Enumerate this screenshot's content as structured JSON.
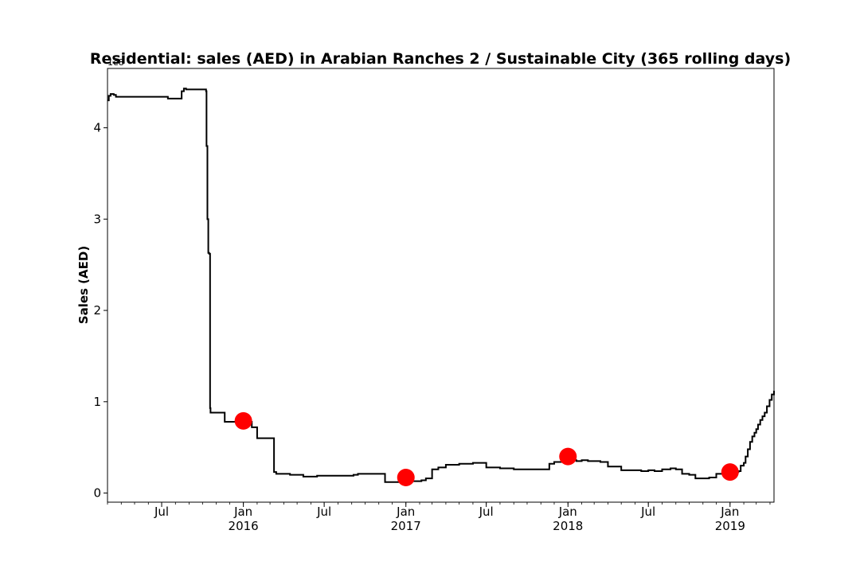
{
  "chart_data": {
    "type": "line",
    "title": "Residential: sales (AED) in Arabian Ranches 2 / Sustainable City (365 rolling days)",
    "xlabel": "",
    "ylabel": "Sales (AED)",
    "y_offset_text": "1e8",
    "y_scale": 100000000,
    "xlim": [
      "2015-03-01",
      "2019-04-10"
    ],
    "ylim": [
      -10000000,
      465000000
    ],
    "y_ticks": [
      {
        "value": 0,
        "label": "0"
      },
      {
        "value": 100000000,
        "label": "1"
      },
      {
        "value": 200000000,
        "label": "2"
      },
      {
        "value": 300000000,
        "label": "3"
      },
      {
        "value": 400000000,
        "label": "4"
      }
    ],
    "x_ticks": [
      {
        "date": "2015-07-01",
        "label": "Jul",
        "sub": ""
      },
      {
        "date": "2016-01-01",
        "label": "Jan",
        "sub": "2016"
      },
      {
        "date": "2016-07-01",
        "label": "Jul",
        "sub": ""
      },
      {
        "date": "2017-01-01",
        "label": "Jan",
        "sub": "2017"
      },
      {
        "date": "2017-07-01",
        "label": "Jul",
        "sub": ""
      },
      {
        "date": "2018-01-01",
        "label": "Jan",
        "sub": "2018"
      },
      {
        "date": "2018-07-01",
        "label": "Jul",
        "sub": ""
      },
      {
        "date": "2019-01-01",
        "label": "Jan",
        "sub": "2019"
      }
    ],
    "grid": false,
    "line_color": "#000000",
    "marker_color": "#ff0000",
    "series": [
      {
        "type": "step",
        "x": [
          "2015-03-01",
          "2015-03-04",
          "2015-03-08",
          "2015-03-15",
          "2015-03-20",
          "2015-04-15",
          "2015-06-01",
          "2015-07-15",
          "2015-08-15",
          "2015-08-20",
          "2015-08-25",
          "2015-09-10",
          "2015-10-09",
          "2015-10-10",
          "2015-10-12",
          "2015-10-14",
          "2015-10-16",
          "2015-10-18",
          "2015-10-19",
          "2015-10-20",
          "2015-10-21",
          "2015-10-23",
          "2015-10-24",
          "2015-10-25",
          "2015-11-20",
          "2015-12-15",
          "2016-01-20",
          "2016-02-01",
          "2016-03-05",
          "2016-03-10",
          "2016-03-15",
          "2016-04-15",
          "2016-05-15",
          "2016-06-15",
          "2016-07-15",
          "2016-09-05",
          "2016-09-15",
          "2016-11-15",
          "2016-12-20",
          "2017-01-15",
          "2017-02-05",
          "2017-02-15",
          "2017-03-01",
          "2017-03-15",
          "2017-04-01",
          "2017-05-01",
          "2017-05-20",
          "2017-06-01",
          "2017-07-01",
          "2017-07-15",
          "2017-08-01",
          "2017-08-20",
          "2017-09-01",
          "2017-11-01",
          "2017-11-20",
          "2017-12-01",
          "2018-01-01",
          "2018-01-20",
          "2018-02-01",
          "2018-02-15",
          "2018-03-15",
          "2018-04-01",
          "2018-05-01",
          "2018-06-01",
          "2018-06-15",
          "2018-07-01",
          "2018-07-15",
          "2018-08-01",
          "2018-08-20",
          "2018-09-01",
          "2018-09-15",
          "2018-10-01",
          "2018-10-15",
          "2018-11-15",
          "2018-12-01",
          "2018-12-20",
          "2019-01-15",
          "2019-01-20",
          "2019-01-25",
          "2019-02-01",
          "2019-02-05",
          "2019-02-10",
          "2019-02-15",
          "2019-02-20",
          "2019-02-25",
          "2019-03-01",
          "2019-03-05",
          "2019-03-10",
          "2019-03-15",
          "2019-03-20",
          "2019-03-25",
          "2019-03-31",
          "2019-04-05",
          "2019-04-10"
        ],
        "y": [
          430000000,
          435000000,
          437000000,
          436000000,
          434000000,
          434000000,
          434000000,
          432000000,
          440000000,
          443000000,
          442000000,
          442000000,
          440000000,
          380000000,
          300000000,
          263000000,
          262000000,
          93000000,
          88000000,
          88000000,
          88000000,
          88000000,
          88000000,
          88000000,
          78000000,
          78000000,
          72000000,
          60000000,
          60000000,
          23000000,
          21000000,
          20000000,
          18000000,
          19000000,
          19000000,
          20000000,
          21000000,
          12000000,
          12000000,
          13000000,
          14000000,
          16000000,
          26000000,
          28000000,
          31000000,
          32000000,
          32000000,
          33000000,
          28000000,
          28000000,
          27000000,
          27000000,
          26000000,
          26000000,
          32000000,
          34000000,
          36000000,
          35000000,
          36000000,
          35000000,
          34000000,
          29000000,
          25000000,
          25000000,
          24000000,
          25000000,
          24000000,
          26000000,
          27000000,
          26000000,
          21000000,
          20000000,
          16000000,
          17000000,
          21000000,
          23000000,
          23000000,
          24000000,
          30000000,
          33000000,
          40000000,
          48000000,
          56000000,
          62000000,
          66000000,
          70000000,
          75000000,
          80000000,
          84000000,
          88000000,
          95000000,
          102000000,
          108000000,
          112000000
        ]
      },
      {
        "type": "scatter",
        "name": "",
        "x": [
          "2016-01-01",
          "2017-01-01",
          "2018-01-01",
          "2019-01-01"
        ],
        "y": [
          79000000,
          17000000,
          40000000,
          23000000
        ]
      }
    ]
  }
}
